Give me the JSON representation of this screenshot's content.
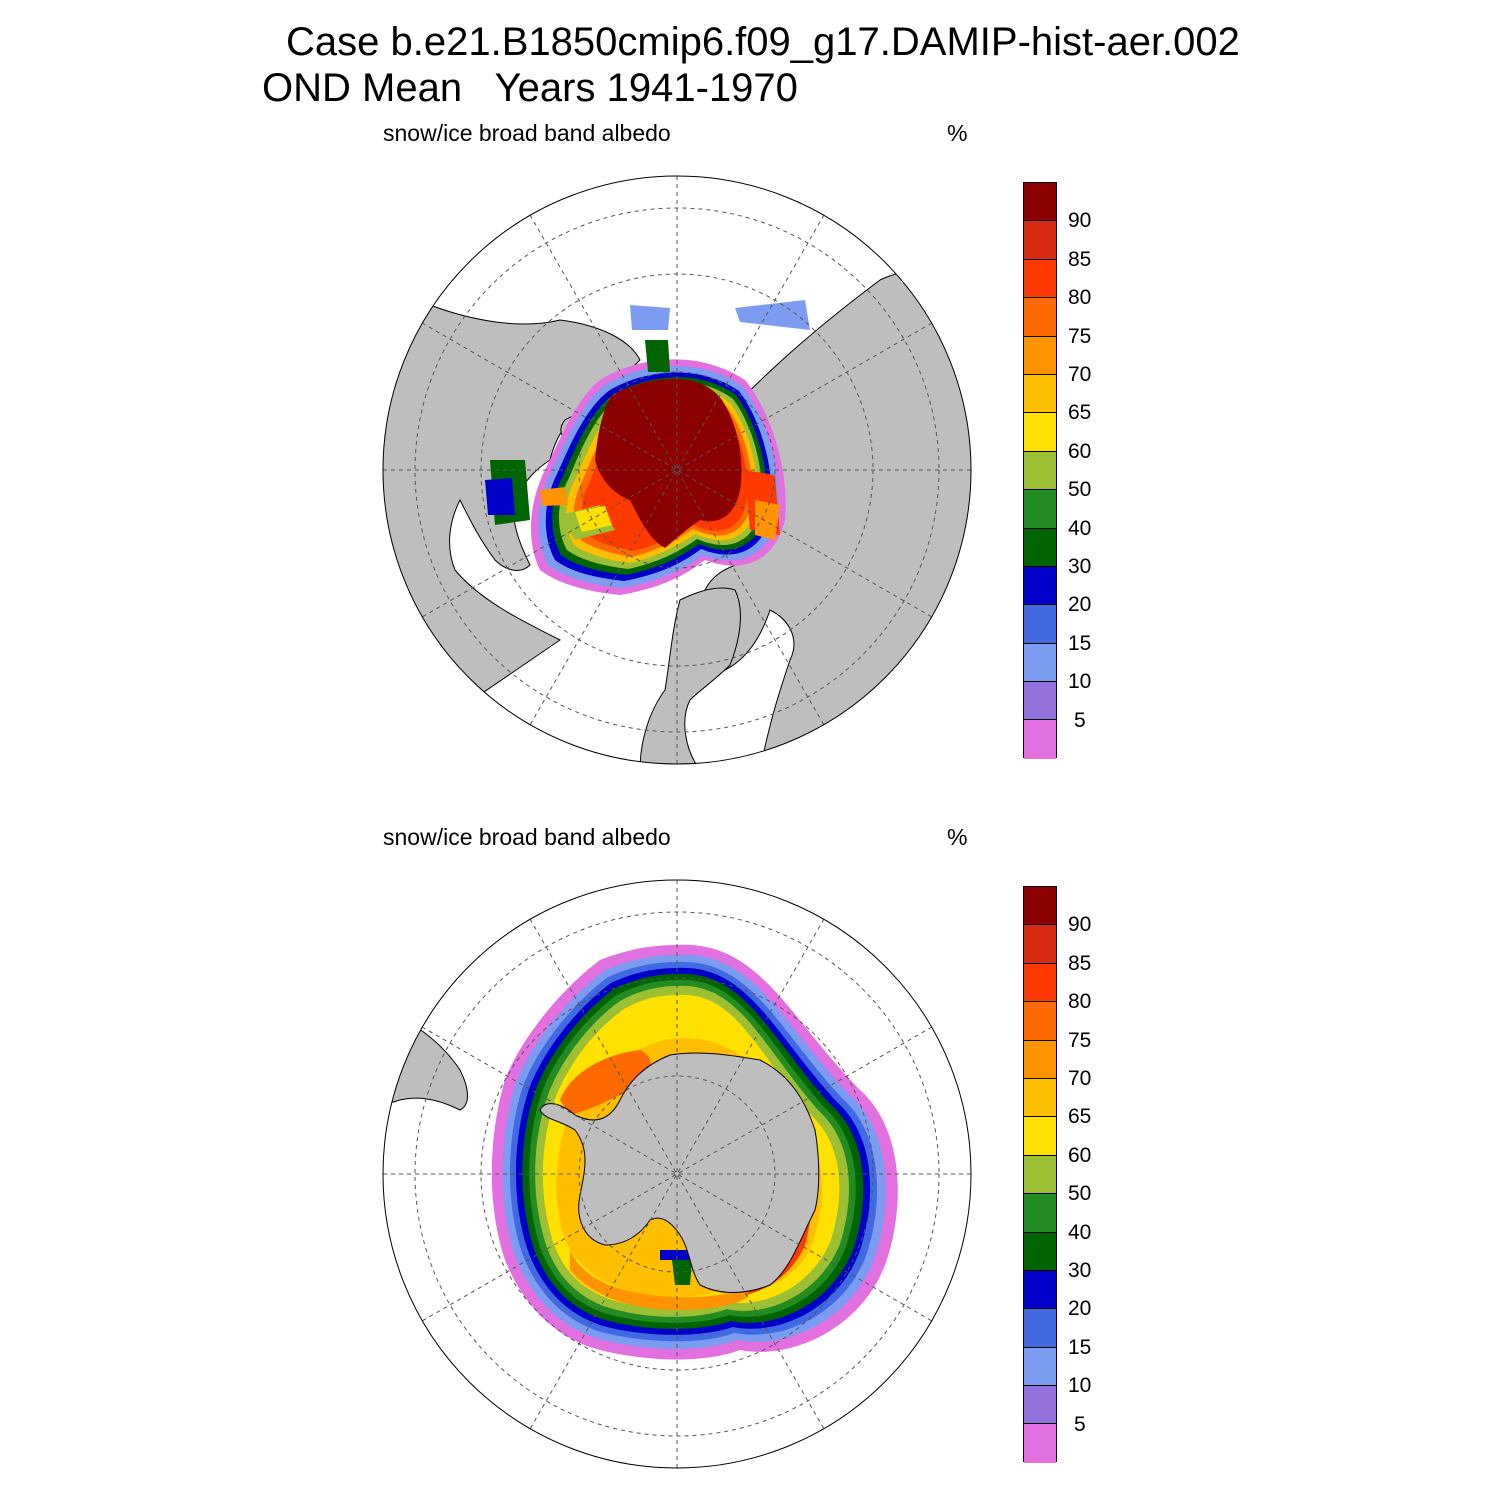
{
  "title": {
    "line1": "Case b.e21.B1850cmip6.f09_g17.DAMIP-hist-aer.002",
    "line2": "OND Mean   Years 1941-1970"
  },
  "panels": [
    {
      "id": "north",
      "label": "snow/ice broad band albedo",
      "unit": "%",
      "hemisphere": "north",
      "projection": "polar stereographic"
    },
    {
      "id": "south",
      "label": "snow/ice broad band albedo",
      "unit": "%",
      "hemisphere": "south",
      "projection": "polar stereographic"
    }
  ],
  "colorbar": {
    "levels": [
      "90",
      "85",
      "80",
      "75",
      "70",
      "65",
      "60",
      "50",
      "40",
      "30",
      "20",
      "15",
      "10",
      "5"
    ],
    "colors": [
      "#8b0000",
      "#d62a10",
      "#ff3a00",
      "#ff6a00",
      "#ff9400",
      "#ffbf00",
      "#ffe100",
      "#9cbf33",
      "#228b22",
      "#006400",
      "#0000c8",
      "#4169e1",
      "#7b9cf0",
      "#9370db",
      "#e270e0"
    ]
  },
  "colors": {
    "land": "#bebebe",
    "coast": "#000000",
    "grid": "#555555"
  }
}
